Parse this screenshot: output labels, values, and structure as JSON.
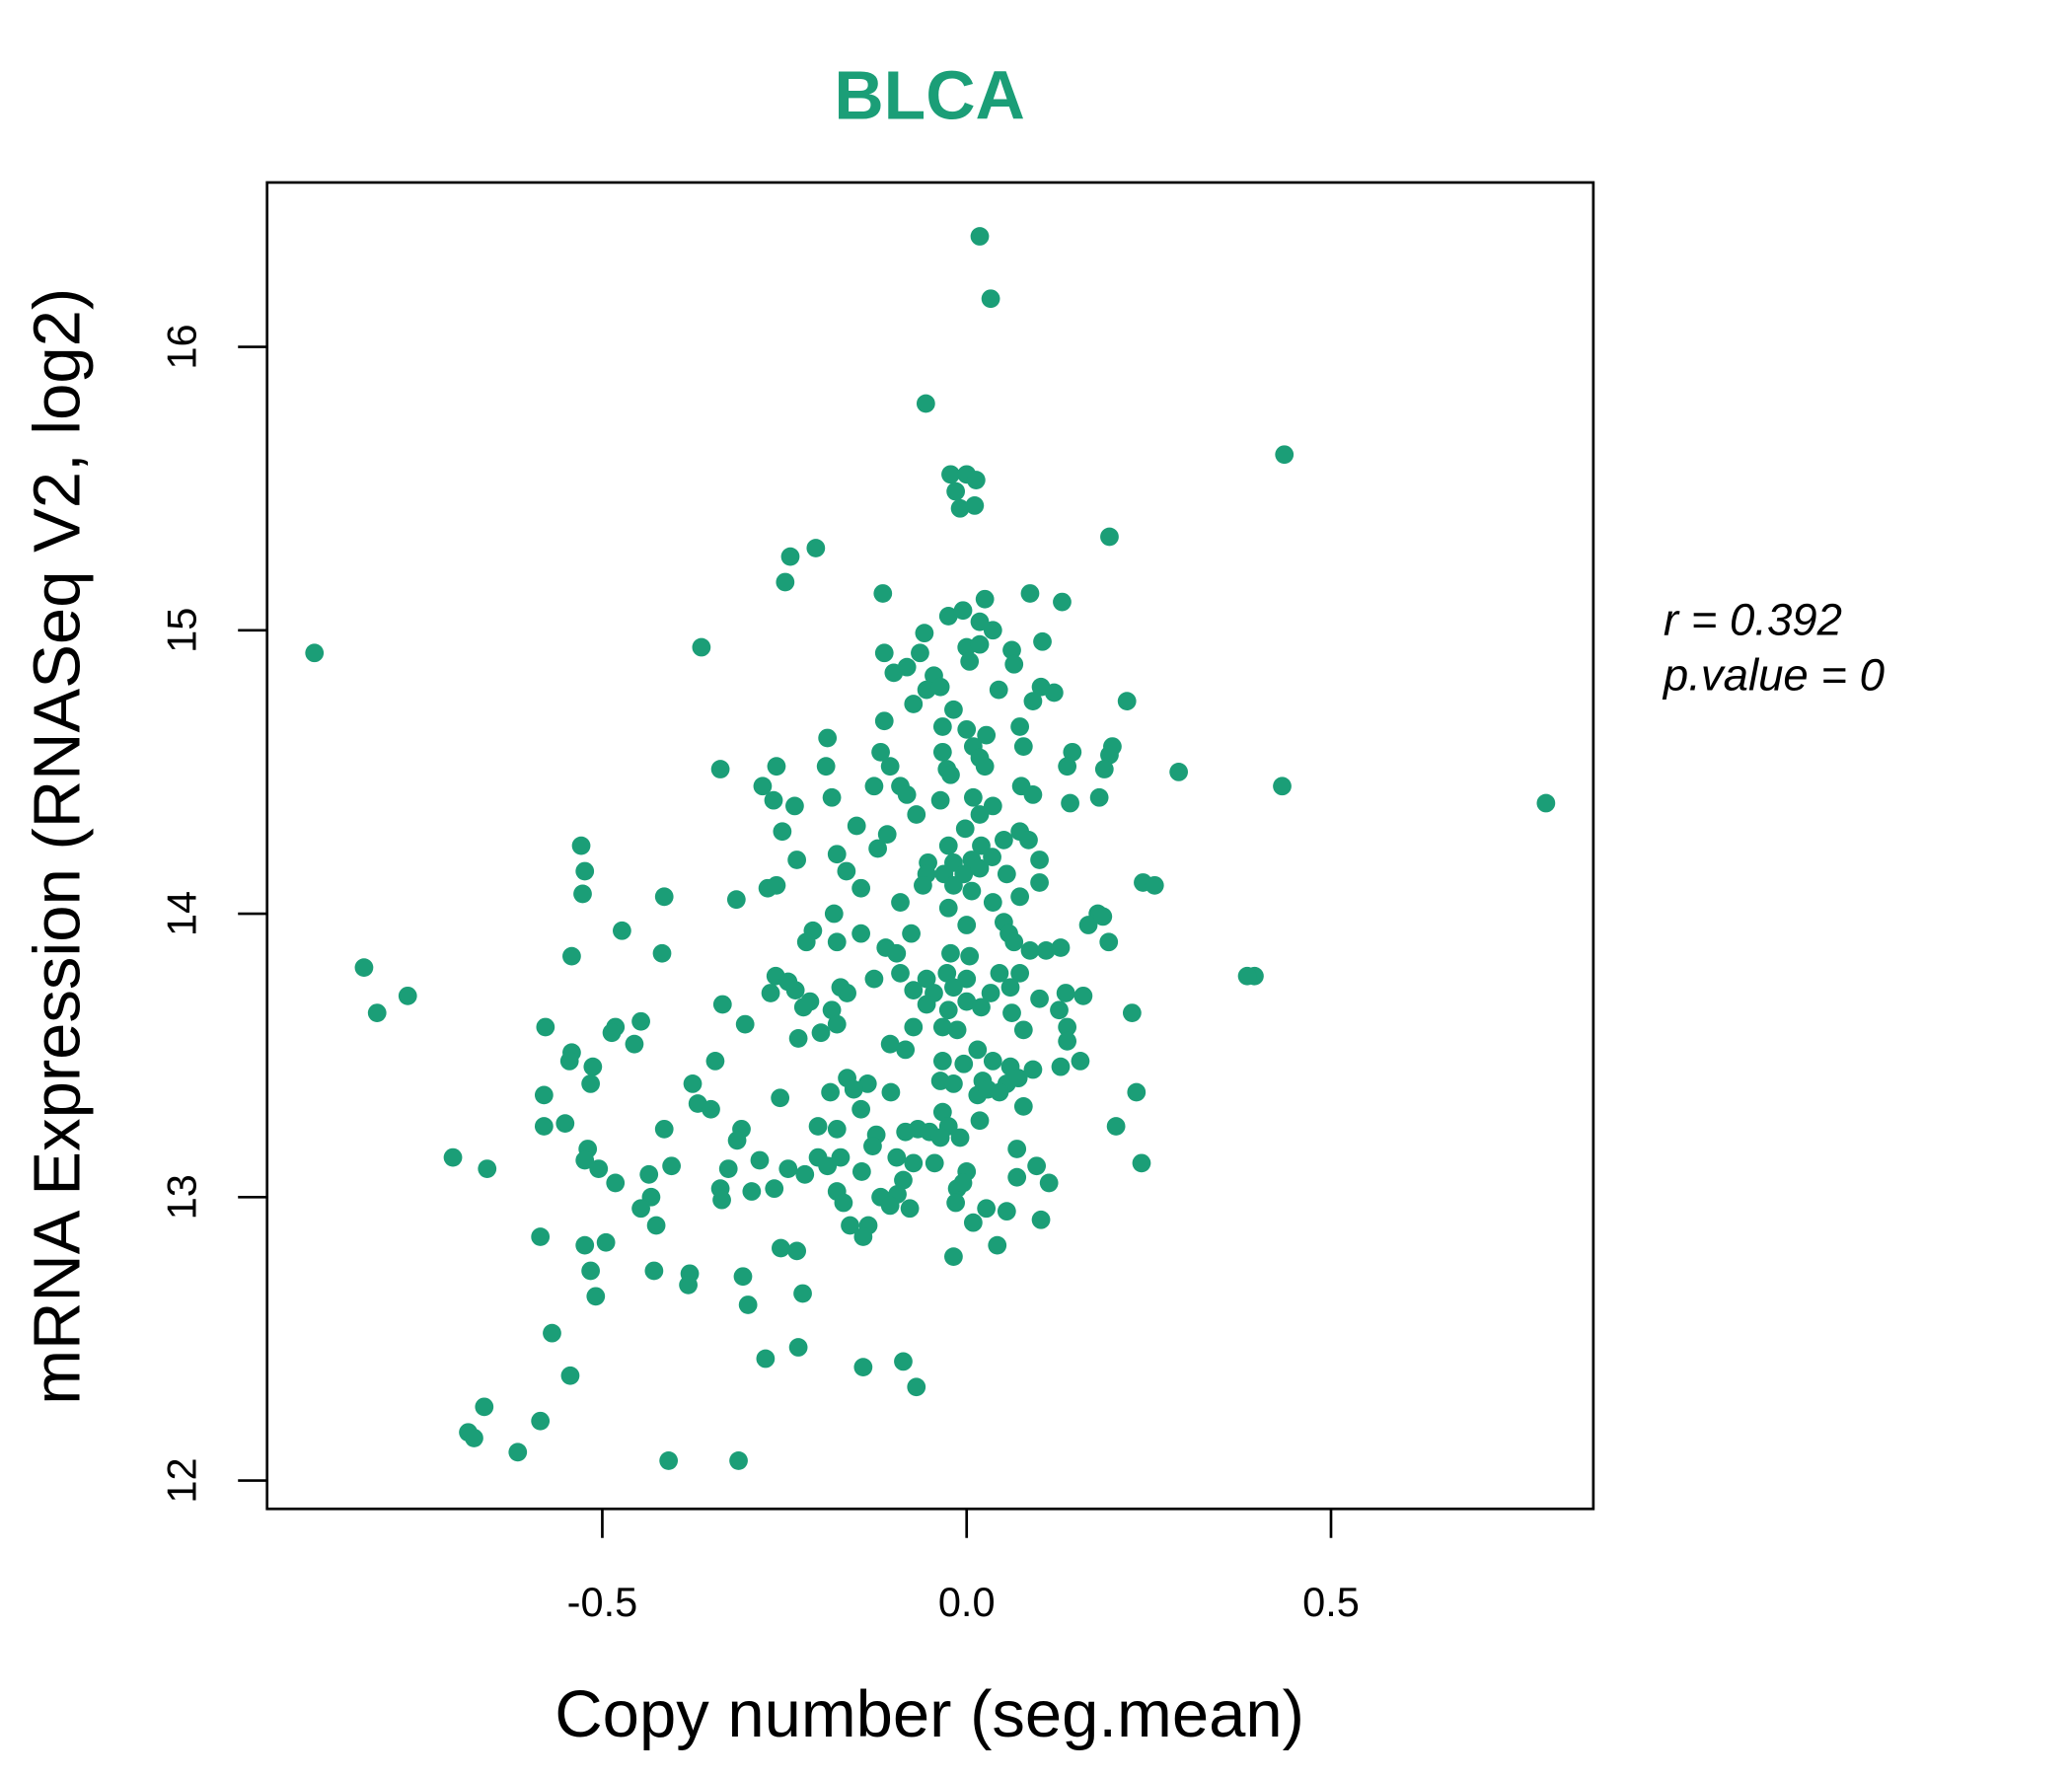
{
  "chart_data": {
    "type": "scatter",
    "title": "BLCA",
    "xlabel": "Copy number (seg.mean)",
    "ylabel": "mRNA Expression (RNASeq V2, log2)",
    "xlim": [
      -0.96,
      0.86
    ],
    "ylim": [
      11.9,
      16.58
    ],
    "xticks": [
      -0.5,
      0.0,
      0.5
    ],
    "xtick_labels": [
      "-0.5",
      "0.0",
      "0.5"
    ],
    "yticks": [
      12,
      13,
      14,
      15,
      16
    ],
    "ytick_labels": [
      "12",
      "13",
      "14",
      "15",
      "16"
    ],
    "grid": false,
    "color": "#1b9e77",
    "annotation": {
      "r_label": "r = 0.392",
      "p_label": "p.value = 0"
    },
    "points": [
      [
        -0.895,
        14.92
      ],
      [
        0.018,
        16.39
      ],
      [
        0.033,
        16.17
      ],
      [
        -0.056,
        15.8
      ],
      [
        0.436,
        15.62
      ],
      [
        -0.022,
        15.55
      ],
      [
        0,
        15.55
      ],
      [
        0.013,
        15.53
      ],
      [
        -0.015,
        15.49
      ],
      [
        -0.009,
        15.43
      ],
      [
        0.011,
        15.44
      ],
      [
        0.196,
        15.33
      ],
      [
        -0.207,
        15.29
      ],
      [
        -0.242,
        15.26
      ],
      [
        -0.249,
        15.17
      ],
      [
        -0.115,
        15.13
      ],
      [
        0.025,
        15.11
      ],
      [
        0.087,
        15.13
      ],
      [
        0.131,
        15.1
      ],
      [
        -0.364,
        14.94
      ],
      [
        -0.025,
        15.05
      ],
      [
        -0.005,
        15.07
      ],
      [
        0.018,
        15.03
      ],
      [
        0.036,
        15.0
      ],
      [
        -0.058,
        14.99
      ],
      [
        -0.113,
        14.92
      ],
      [
        -0.064,
        14.92
      ],
      [
        0,
        14.94
      ],
      [
        0.018,
        14.95
      ],
      [
        0.062,
        14.93
      ],
      [
        0.104,
        14.96
      ],
      [
        -0.1,
        14.85
      ],
      [
        -0.082,
        14.87
      ],
      [
        -0.045,
        14.84
      ],
      [
        0.004,
        14.89
      ],
      [
        0.065,
        14.88
      ],
      [
        -0.055,
        14.79
      ],
      [
        -0.036,
        14.8
      ],
      [
        -0.073,
        14.74
      ],
      [
        -0.018,
        14.72
      ],
      [
        0.044,
        14.79
      ],
      [
        0.102,
        14.8
      ],
      [
        0.12,
        14.78
      ],
      [
        0.091,
        14.75
      ],
      [
        0.22,
        14.75
      ],
      [
        -0.113,
        14.68
      ],
      [
        -0.033,
        14.66
      ],
      [
        0,
        14.65
      ],
      [
        0.027,
        14.63
      ],
      [
        0.073,
        14.66
      ],
      [
        0.078,
        14.59
      ],
      [
        -0.191,
        14.62
      ],
      [
        -0.118,
        14.57
      ],
      [
        -0.033,
        14.57
      ],
      [
        0.009,
        14.59
      ],
      [
        0.018,
        14.55
      ],
      [
        0.145,
        14.57
      ],
      [
        0.2,
        14.59
      ],
      [
        0.196,
        14.56
      ],
      [
        -0.338,
        14.51
      ],
      [
        -0.261,
        14.52
      ],
      [
        -0.193,
        14.52
      ],
      [
        -0.105,
        14.52
      ],
      [
        -0.027,
        14.51
      ],
      [
        0.025,
        14.52
      ],
      [
        0.138,
        14.52
      ],
      [
        0.189,
        14.51
      ],
      [
        0.291,
        14.5
      ],
      [
        -0.022,
        14.49
      ],
      [
        -0.28,
        14.45
      ],
      [
        -0.127,
        14.45
      ],
      [
        -0.091,
        14.45
      ],
      [
        0.075,
        14.45
      ],
      [
        0.433,
        14.45
      ],
      [
        0.795,
        14.39
      ],
      [
        -0.265,
        14.4
      ],
      [
        -0.236,
        14.38
      ],
      [
        -0.185,
        14.41
      ],
      [
        -0.082,
        14.42
      ],
      [
        -0.036,
        14.4
      ],
      [
        0.009,
        14.41
      ],
      [
        0.036,
        14.38
      ],
      [
        0.091,
        14.42
      ],
      [
        0.142,
        14.39
      ],
      [
        0.182,
        14.41
      ],
      [
        -0.069,
        14.35
      ],
      [
        0.018,
        14.35
      ],
      [
        -0.253,
        14.29
      ],
      [
        -0.151,
        14.31
      ],
      [
        -0.109,
        14.28
      ],
      [
        -0.002,
        14.3
      ],
      [
        0.073,
        14.29
      ],
      [
        0.085,
        14.26
      ],
      [
        0.051,
        14.26
      ],
      [
        -0.122,
        14.23
      ],
      [
        -0.025,
        14.24
      ],
      [
        0.02,
        14.24
      ],
      [
        -0.178,
        14.21
      ],
      [
        -0.233,
        14.19
      ],
      [
        -0.053,
        14.18
      ],
      [
        -0.018,
        14.18
      ],
      [
        0.007,
        14.19
      ],
      [
        0.035,
        14.2
      ],
      [
        0.1,
        14.19
      ],
      [
        -0.165,
        14.15
      ],
      [
        -0.055,
        14.14
      ],
      [
        -0.031,
        14.14
      ],
      [
        -0.004,
        14.14
      ],
      [
        0.018,
        14.16
      ],
      [
        0.055,
        14.14
      ],
      [
        -0.529,
        14.24
      ],
      [
        -0.524,
        14.15
      ],
      [
        -0.527,
        14.07
      ],
      [
        -0.273,
        14.09
      ],
      [
        -0.261,
        14.1
      ],
      [
        -0.145,
        14.09
      ],
      [
        -0.06,
        14.1
      ],
      [
        -0.018,
        14.1
      ],
      [
        0.007,
        14.08
      ],
      [
        0.1,
        14.11
      ],
      [
        0.242,
        14.11
      ],
      [
        0.258,
        14.1
      ],
      [
        -0.415,
        14.06
      ],
      [
        -0.316,
        14.05
      ],
      [
        -0.091,
        14.04
      ],
      [
        -0.025,
        14.02
      ],
      [
        0.036,
        14.04
      ],
      [
        0.073,
        14.06
      ],
      [
        -0.182,
        14.0
      ],
      [
        0.18,
        14.0
      ],
      [
        -0.473,
        13.94
      ],
      [
        -0.211,
        13.94
      ],
      [
        -0.22,
        13.9
      ],
      [
        -0.145,
        13.93
      ],
      [
        -0.076,
        13.93
      ],
      [
        0,
        13.96
      ],
      [
        0.051,
        13.97
      ],
      [
        0.058,
        13.93
      ],
      [
        0.167,
        13.96
      ],
      [
        0.187,
        13.99
      ],
      [
        0.195,
        13.9
      ],
      [
        0.065,
        13.9
      ],
      [
        -0.178,
        13.9
      ],
      [
        -0.111,
        13.88
      ],
      [
        -0.096,
        13.86
      ],
      [
        -0.022,
        13.86
      ],
      [
        0.004,
        13.85
      ],
      [
        0.087,
        13.87
      ],
      [
        0.109,
        13.87
      ],
      [
        0.129,
        13.88
      ],
      [
        -0.542,
        13.85
      ],
      [
        -0.418,
        13.86
      ],
      [
        -0.827,
        13.81
      ],
      [
        -0.767,
        13.71
      ],
      [
        -0.809,
        13.65
      ],
      [
        0.395,
        13.78
      ],
      [
        0.385,
        13.78
      ],
      [
        -0.262,
        13.78
      ],
      [
        -0.245,
        13.76
      ],
      [
        -0.127,
        13.77
      ],
      [
        -0.091,
        13.79
      ],
      [
        -0.055,
        13.77
      ],
      [
        -0.027,
        13.79
      ],
      [
        0,
        13.77
      ],
      [
        0.045,
        13.79
      ],
      [
        0.073,
        13.79
      ],
      [
        -0.269,
        13.72
      ],
      [
        -0.235,
        13.73
      ],
      [
        -0.173,
        13.74
      ],
      [
        -0.164,
        13.72
      ],
      [
        -0.073,
        13.73
      ],
      [
        -0.045,
        13.72
      ],
      [
        -0.018,
        13.74
      ],
      [
        0.033,
        13.72
      ],
      [
        0.06,
        13.74
      ],
      [
        0.136,
        13.72
      ],
      [
        0.16,
        13.71
      ],
      [
        -0.215,
        13.69
      ],
      [
        -0.055,
        13.68
      ],
      [
        0,
        13.69
      ],
      [
        0.02,
        13.67
      ],
      [
        0.1,
        13.7
      ],
      [
        -0.335,
        13.68
      ],
      [
        -0.224,
        13.67
      ],
      [
        -0.185,
        13.66
      ],
      [
        -0.025,
        13.66
      ],
      [
        0.062,
        13.65
      ],
      [
        0.127,
        13.66
      ],
      [
        0.227,
        13.65
      ],
      [
        -0.578,
        13.6
      ],
      [
        -0.482,
        13.6
      ],
      [
        -0.447,
        13.62
      ],
      [
        -0.304,
        13.61
      ],
      [
        -0.178,
        13.61
      ],
      [
        -0.073,
        13.6
      ],
      [
        -0.033,
        13.6
      ],
      [
        -0.013,
        13.59
      ],
      [
        0.078,
        13.59
      ],
      [
        0.138,
        13.6
      ],
      [
        -0.487,
        13.58
      ],
      [
        -0.456,
        13.54
      ],
      [
        -0.231,
        13.56
      ],
      [
        -0.2,
        13.58
      ],
      [
        -0.105,
        13.54
      ],
      [
        -0.084,
        13.52
      ],
      [
        0.015,
        13.52
      ],
      [
        0.138,
        13.55
      ],
      [
        -0.542,
        13.51
      ],
      [
        -0.545,
        13.48
      ],
      [
        -0.345,
        13.48
      ],
      [
        -0.033,
        13.48
      ],
      [
        -0.004,
        13.47
      ],
      [
        0.036,
        13.48
      ],
      [
        0.06,
        13.46
      ],
      [
        0.091,
        13.45
      ],
      [
        0.129,
        13.46
      ],
      [
        0.156,
        13.48
      ],
      [
        -0.513,
        13.46
      ],
      [
        -0.516,
        13.4
      ],
      [
        -0.376,
        13.4
      ],
      [
        -0.164,
        13.42
      ],
      [
        -0.136,
        13.4
      ],
      [
        -0.036,
        13.41
      ],
      [
        -0.018,
        13.4
      ],
      [
        0.022,
        13.41
      ],
      [
        0.055,
        13.4
      ],
      [
        0.071,
        13.42
      ],
      [
        -0.58,
        13.36
      ],
      [
        -0.369,
        13.33
      ],
      [
        -0.256,
        13.35
      ],
      [
        -0.187,
        13.37
      ],
      [
        -0.155,
        13.38
      ],
      [
        -0.104,
        13.37
      ],
      [
        0.015,
        13.36
      ],
      [
        0.029,
        13.38
      ],
      [
        0.045,
        13.37
      ],
      [
        0.233,
        13.37
      ],
      [
        -0.351,
        13.31
      ],
      [
        -0.145,
        13.31
      ],
      [
        -0.033,
        13.3
      ],
      [
        0.078,
        13.32
      ],
      [
        0.018,
        13.27
      ],
      [
        -0.58,
        13.25
      ],
      [
        -0.551,
        13.26
      ],
      [
        -0.415,
        13.24
      ],
      [
        -0.309,
        13.24
      ],
      [
        -0.204,
        13.25
      ],
      [
        -0.178,
        13.24
      ],
      [
        -0.067,
        13.24
      ],
      [
        -0.051,
        13.23
      ],
      [
        -0.025,
        13.25
      ],
      [
        0.205,
        13.25
      ],
      [
        -0.315,
        13.2
      ],
      [
        -0.124,
        13.22
      ],
      [
        -0.084,
        13.23
      ],
      [
        -0.036,
        13.21
      ],
      [
        -0.009,
        13.21
      ],
      [
        -0.52,
        13.17
      ],
      [
        -0.129,
        13.18
      ],
      [
        0.069,
        13.17
      ],
      [
        -0.705,
        13.14
      ],
      [
        -0.524,
        13.13
      ],
      [
        -0.284,
        13.13
      ],
      [
        -0.204,
        13.14
      ],
      [
        -0.173,
        13.14
      ],
      [
        -0.096,
        13.14
      ],
      [
        -0.073,
        13.12
      ],
      [
        -0.044,
        13.12
      ],
      [
        0.096,
        13.11
      ],
      [
        0.24,
        13.12
      ],
      [
        -0.658,
        13.1
      ],
      [
        -0.505,
        13.1
      ],
      [
        -0.405,
        13.11
      ],
      [
        -0.327,
        13.1
      ],
      [
        -0.245,
        13.1
      ],
      [
        -0.191,
        13.11
      ],
      [
        -0.144,
        13.09
      ],
      [
        -0.222,
        13.08
      ],
      [
        0,
        13.09
      ],
      [
        -0.436,
        13.08
      ],
      [
        0.069,
        13.07
      ],
      [
        -0.087,
        13.06
      ],
      [
        -0.482,
        13.05
      ],
      [
        0.113,
        13.05
      ],
      [
        -0.338,
        13.03
      ],
      [
        -0.264,
        13.03
      ],
      [
        -0.295,
        13.02
      ],
      [
        -0.013,
        13.03
      ],
      [
        -0.005,
        13.05
      ],
      [
        -0.178,
        13.02
      ],
      [
        -0.118,
        13.0
      ],
      [
        -0.095,
        13.01
      ],
      [
        -0.336,
        12.99
      ],
      [
        -0.169,
        12.98
      ],
      [
        -0.105,
        12.97
      ],
      [
        -0.015,
        12.98
      ],
      [
        -0.433,
        13.0
      ],
      [
        -0.447,
        12.96
      ],
      [
        -0.078,
        12.96
      ],
      [
        0.027,
        12.96
      ],
      [
        0.055,
        12.95
      ],
      [
        -0.426,
        12.9
      ],
      [
        -0.16,
        12.9
      ],
      [
        -0.135,
        12.9
      ],
      [
        0.009,
        12.91
      ],
      [
        0.102,
        12.92
      ],
      [
        -0.142,
        12.86
      ],
      [
        -0.585,
        12.86
      ],
      [
        -0.524,
        12.83
      ],
      [
        -0.495,
        12.84
      ],
      [
        -0.255,
        12.82
      ],
      [
        -0.233,
        12.81
      ],
      [
        0.042,
        12.83
      ],
      [
        -0.018,
        12.79
      ],
      [
        -0.516,
        12.74
      ],
      [
        -0.429,
        12.74
      ],
      [
        -0.38,
        12.73
      ],
      [
        -0.382,
        12.69
      ],
      [
        -0.307,
        12.72
      ],
      [
        -0.509,
        12.65
      ],
      [
        -0.225,
        12.66
      ],
      [
        -0.3,
        12.62
      ],
      [
        -0.569,
        12.52
      ],
      [
        -0.231,
        12.47
      ],
      [
        -0.276,
        12.43
      ],
      [
        -0.087,
        12.42
      ],
      [
        -0.142,
        12.4
      ],
      [
        -0.544,
        12.37
      ],
      [
        -0.069,
        12.33
      ],
      [
        -0.662,
        12.26
      ],
      [
        -0.585,
        12.21
      ],
      [
        -0.684,
        12.17
      ],
      [
        -0.676,
        12.15
      ],
      [
        -0.616,
        12.1
      ],
      [
        -0.409,
        12.07
      ],
      [
        -0.313,
        12.07
      ]
    ]
  }
}
